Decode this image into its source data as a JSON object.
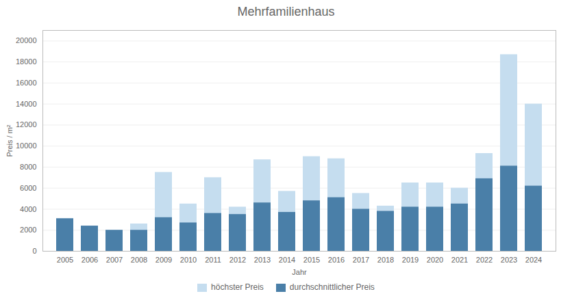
{
  "chart_data": {
    "type": "bar",
    "title": "Mehrfamilienhaus",
    "xlabel": "Jahr",
    "ylabel": "Preis / m²",
    "categories": [
      "2005",
      "2006",
      "2007",
      "2008",
      "2009",
      "2010",
      "2011",
      "2012",
      "2013",
      "2014",
      "2015",
      "2016",
      "2017",
      "2018",
      "2019",
      "2020",
      "2021",
      "2022",
      "2023",
      "2024"
    ],
    "series": [
      {
        "name": "höchster Preis",
        "color": "#c5ddef",
        "values": [
          3100,
          2400,
          2000,
          2600,
          7500,
          4500,
          7000,
          4200,
          8700,
          5700,
          9000,
          8800,
          5500,
          4300,
          6500,
          6500,
          6000,
          9300,
          18700,
          14000
        ]
      },
      {
        "name": "durchschnittlicher Preis",
        "color": "#4a7fa8",
        "values": [
          3100,
          2400,
          2000,
          2000,
          3200,
          2700,
          3600,
          3500,
          4600,
          3700,
          4800,
          5100,
          4000,
          3800,
          4200,
          4200,
          4500,
          6900,
          8100,
          6200
        ]
      }
    ],
    "ylim": [
      0,
      21000
    ],
    "yticks": [
      0,
      2000,
      4000,
      6000,
      8000,
      10000,
      12000,
      14000,
      16000,
      18000,
      20000
    ],
    "stacked": false,
    "grid": true,
    "legend": "bottom"
  }
}
